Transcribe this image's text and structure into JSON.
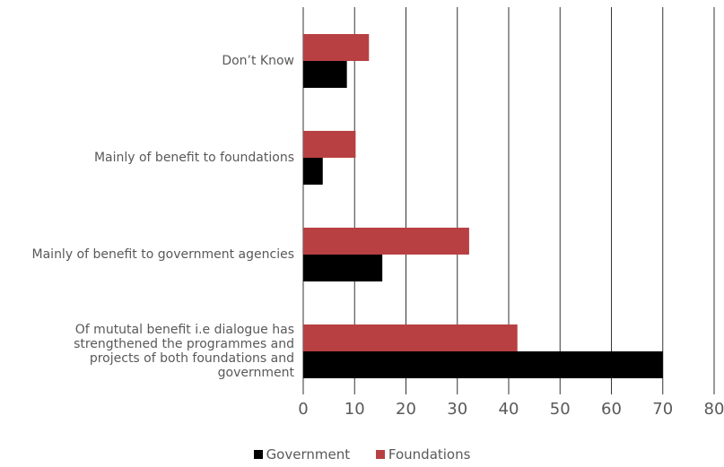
{
  "chart_data": {
    "type": "bar",
    "orientation": "horizontal",
    "categories": [
      "Don’t Know",
      "Mainly of benefit to foundations",
      "Mainly of benefit to government agencies",
      "Of mututal benefit i.e dialogue has strengthened the programmes and projects of both foundations and government"
    ],
    "category_lines": [
      [
        "Don’t Know"
      ],
      [
        "Mainly of benefit to foundations"
      ],
      [
        "Mainly of benefit to government agencies"
      ],
      [
        "Of mututal benefit i.e dialogue has",
        "strengthened the programmes and",
        "projects of both foundations and",
        "government"
      ]
    ],
    "series": [
      {
        "name": "Government",
        "color": "#000000",
        "values": [
          8.5,
          3.8,
          15.4,
          70
        ]
      },
      {
        "name": "Foundations",
        "color": "#b84042",
        "values": [
          12.8,
          10.2,
          32.3,
          41.7
        ]
      }
    ],
    "xlim": [
      0,
      80
    ],
    "xticks": [
      "0",
      "10",
      "20",
      "30",
      "40",
      "50",
      "60",
      "70",
      "80"
    ],
    "grid": "vertical",
    "legend_position": "bottom"
  }
}
